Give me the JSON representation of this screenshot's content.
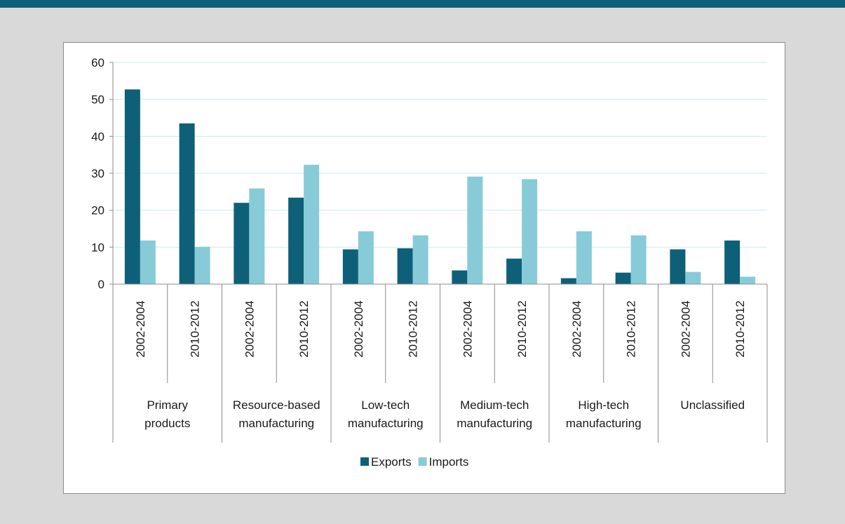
{
  "chart_data": {
    "type": "bar",
    "title": "",
    "xlabel": "",
    "ylabel": "",
    "ylim": [
      0,
      60
    ],
    "yticks": [
      0,
      10,
      20,
      30,
      40,
      50,
      60
    ],
    "groups": [
      {
        "label_lines": [
          "Primary",
          "products"
        ],
        "periods": [
          "2002-2004",
          "2010-2012"
        ]
      },
      {
        "label_lines": [
          "Resource-based",
          "manufacturing"
        ],
        "periods": [
          "2002-2004",
          "2010-2012"
        ]
      },
      {
        "label_lines": [
          "Low-tech",
          "manufacturing"
        ],
        "periods": [
          "2002-2004",
          "2010-2012"
        ]
      },
      {
        "label_lines": [
          "Medium-tech",
          "manufacturing"
        ],
        "periods": [
          "2002-2004",
          "2010-2012"
        ]
      },
      {
        "label_lines": [
          "High-tech",
          "manufacturing"
        ],
        "periods": [
          "2002-2004",
          "2010-2012"
        ]
      },
      {
        "label_lines": [
          "Unclassified"
        ],
        "periods": [
          "2002-2004",
          "2010-2012"
        ]
      }
    ],
    "series": [
      {
        "name": "Exports",
        "color": "#0d6078",
        "values": [
          52.7,
          43.5,
          22.0,
          23.4,
          9.4,
          9.7,
          3.7,
          6.9,
          1.6,
          3.1,
          9.4,
          11.8
        ]
      },
      {
        "name": "Imports",
        "color": "#87cbd8",
        "values": [
          11.8,
          10.1,
          25.9,
          32.3,
          14.3,
          13.2,
          29.1,
          28.4,
          14.3,
          13.2,
          3.3,
          2.0
        ]
      }
    ],
    "grid": true,
    "legend_position": "bottom"
  }
}
